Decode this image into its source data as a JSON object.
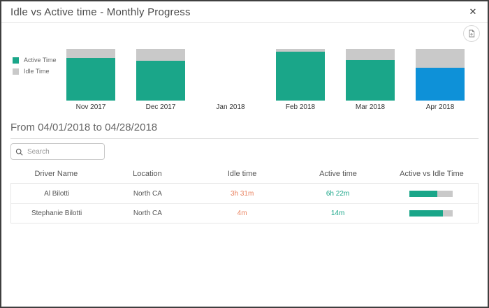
{
  "dialog": {
    "title": "Idle vs Active time - Monthly Progress",
    "close_label": "✕"
  },
  "chart_data": {
    "type": "bar",
    "stacked": true,
    "title": "Idle vs Active time - Monthly Progress",
    "categories": [
      "Nov 2017",
      "Dec 2017",
      "Jan 2018",
      "Feb 2018",
      "Mar 2018",
      "Apr 2018"
    ],
    "series": [
      {
        "name": "Active Time",
        "values": [
          83,
          77,
          0,
          94,
          79,
          64
        ]
      },
      {
        "name": "Idle Time",
        "values": [
          17,
          23,
          0,
          6,
          21,
          36
        ]
      }
    ],
    "unit": "percent of month total",
    "ylim": [
      0,
      100
    ],
    "grid": false,
    "legend_position": "left",
    "selected_category": "Apr 2018",
    "colors": {
      "active": "#1aa689",
      "idle": "#c9c9c9",
      "selected_active": "#0e91d8"
    }
  },
  "legend": [
    {
      "label": "Active Time",
      "color": "#1aa689"
    },
    {
      "label": "Idle Time",
      "color": "#c9c9c9"
    }
  ],
  "period": {
    "heading": "From 04/01/2018 to 04/28/2018"
  },
  "search": {
    "placeholder": "Search"
  },
  "table": {
    "columns": [
      "Driver Name",
      "Location",
      "Idle time",
      "Active time",
      "Active vs Idle Time"
    ],
    "rows": [
      {
        "driver_name": "Al Bilotti",
        "location": "North CA",
        "idle_time": "3h 31m",
        "active_time": "6h 22m",
        "active_pct": 64
      },
      {
        "driver_name": "Stephanie Bilotti",
        "location": "North CA",
        "idle_time": "4m",
        "active_time": "14m",
        "active_pct": 77
      }
    ]
  },
  "colors": {
    "accent_teal": "#1aa689",
    "accent_blue": "#0e91d8",
    "idle_gray": "#c9c9c9",
    "idle_text_orange": "#e9815e"
  }
}
